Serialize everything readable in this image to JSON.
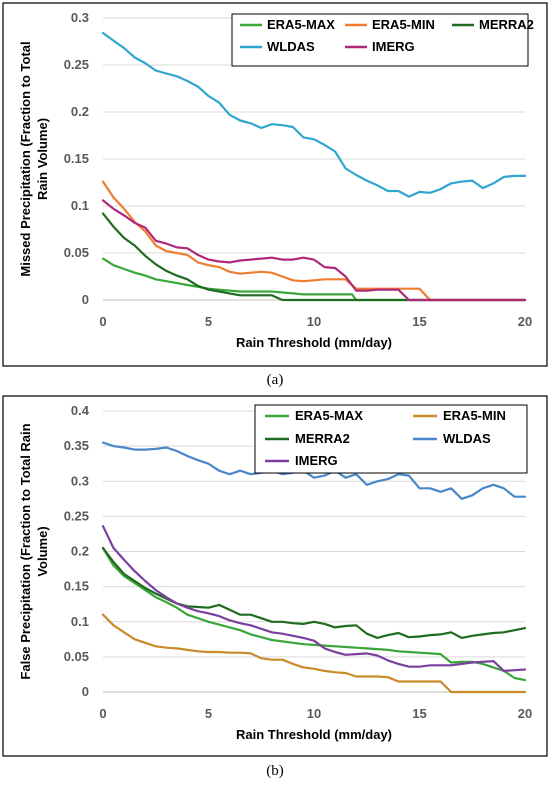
{
  "chart_data": [
    {
      "type": "line",
      "panel_label": "(a)",
      "title": "",
      "xlabel": "Rain Threshold (mm/day)",
      "ylabel": "Missed Precipitation (Fraction to Total Rain Volume)",
      "xlim": [
        0,
        20
      ],
      "ylim": [
        0,
        0.3
      ],
      "xticks": [
        "0",
        "5",
        "10",
        "15",
        "20"
      ],
      "yticks": [
        "0",
        "0.05",
        "0.1",
        "0.15",
        "0.2",
        "0.25",
        "0.3"
      ],
      "grid": "horizontal",
      "legend_position": "top-right",
      "series": [
        {
          "name": "ERA5-MAX",
          "color": "#3aa63a",
          "x": [
            0,
            0.5,
            1,
            1.5,
            2,
            2.5,
            3,
            3.5,
            4,
            4.5,
            5,
            5.5,
            6,
            6.5,
            7,
            7.5,
            8,
            8.5,
            9,
            9.5,
            10,
            10.5,
            11,
            11.5,
            11.8,
            12,
            12.5,
            13,
            14,
            15,
            16,
            17,
            18,
            19,
            20
          ],
          "y": [
            0.044,
            0.037,
            0.033,
            0.029,
            0.026,
            0.022,
            0.02,
            0.018,
            0.016,
            0.014,
            0.012,
            0.011,
            0.01,
            0.009,
            0.009,
            0.009,
            0.009,
            0.008,
            0.007,
            0.006,
            0.006,
            0.006,
            0.006,
            0.006,
            0.006,
            0,
            0,
            0,
            0,
            0,
            0,
            0,
            0,
            0,
            0
          ]
        },
        {
          "name": "ERA5-MIN",
          "color": "#f07c30",
          "x": [
            0,
            0.5,
            1,
            1.5,
            2,
            2.5,
            3,
            3.5,
            4,
            4.5,
            5,
            5.5,
            6,
            6.5,
            7,
            7.5,
            8,
            8.5,
            9,
            9.5,
            10,
            10.5,
            11,
            11.5,
            12,
            12.5,
            13,
            13.5,
            14,
            14.5,
            15,
            15.5,
            16,
            17,
            18,
            19,
            20
          ],
          "y": [
            0.126,
            0.109,
            0.097,
            0.083,
            0.073,
            0.058,
            0.052,
            0.05,
            0.048,
            0.04,
            0.037,
            0.035,
            0.03,
            0.028,
            0.029,
            0.03,
            0.029,
            0.025,
            0.021,
            0.02,
            0.021,
            0.022,
            0.022,
            0.022,
            0.012,
            0.012,
            0.012,
            0.012,
            0.012,
            0.012,
            0.012,
            0,
            0,
            0,
            0,
            0,
            0
          ]
        },
        {
          "name": "MERRA2",
          "color": "#1f6b1f",
          "x": [
            0,
            0.5,
            1,
            1.5,
            2,
            2.5,
            3,
            3.5,
            4,
            4.5,
            5,
            5.5,
            6,
            6.5,
            7,
            7.5,
            8,
            8.5,
            9,
            10,
            11,
            12,
            13,
            14,
            15,
            16,
            17,
            18,
            19,
            20
          ],
          "y": [
            0.092,
            0.078,
            0.066,
            0.058,
            0.047,
            0.038,
            0.031,
            0.026,
            0.022,
            0.015,
            0.011,
            0.009,
            0.007,
            0.005,
            0.005,
            0.005,
            0.005,
            0,
            0,
            0,
            0,
            0,
            0,
            0,
            0,
            0,
            0,
            0,
            0,
            0
          ]
        },
        {
          "name": "WLDAS",
          "color": "#2fa6cf",
          "x": [
            0,
            0.5,
            1,
            1.5,
            2,
            2.5,
            3,
            3.5,
            4,
            4.5,
            5,
            5.5,
            6,
            6.5,
            7,
            7.5,
            8,
            8.5,
            9,
            9.5,
            10,
            10.5,
            11,
            11.5,
            12,
            12.5,
            13,
            13.5,
            14,
            14.5,
            15,
            15.5,
            16,
            16.5,
            17,
            17.5,
            18,
            18.5,
            19,
            19.5,
            20
          ],
          "y": [
            0.284,
            0.276,
            0.268,
            0.258,
            0.252,
            0.244,
            0.241,
            0.238,
            0.233,
            0.227,
            0.217,
            0.21,
            0.197,
            0.191,
            0.188,
            0.183,
            0.187,
            0.186,
            0.184,
            0.173,
            0.171,
            0.165,
            0.158,
            0.14,
            0.133,
            0.127,
            0.122,
            0.116,
            0.116,
            0.11,
            0.115,
            0.114,
            0.118,
            0.124,
            0.126,
            0.127,
            0.119,
            0.124,
            0.131,
            0.132,
            0.132
          ]
        },
        {
          "name": "IMERG",
          "color": "#b0287a",
          "x": [
            0,
            0.5,
            1,
            1.5,
            2,
            2.5,
            3,
            3.5,
            4,
            4.5,
            5,
            5.5,
            6,
            6.5,
            7,
            7.5,
            8,
            8.5,
            9,
            9.5,
            10,
            10.5,
            11,
            11.5,
            12,
            12.5,
            13,
            13.5,
            14,
            14.5,
            15,
            16,
            17,
            18,
            19,
            20
          ],
          "y": [
            0.106,
            0.097,
            0.09,
            0.082,
            0.077,
            0.063,
            0.06,
            0.056,
            0.055,
            0.048,
            0.043,
            0.041,
            0.04,
            0.042,
            0.043,
            0.044,
            0.045,
            0.043,
            0.043,
            0.045,
            0.043,
            0.035,
            0.034,
            0.025,
            0.01,
            0.01,
            0.011,
            0.011,
            0.011,
            0,
            0,
            0,
            0,
            0,
            0,
            0
          ]
        }
      ]
    },
    {
      "type": "line",
      "panel_label": "(b)",
      "title": "",
      "xlabel": "Rain Threshold (mm/day)",
      "ylabel": "False Precipitation (Fraction to Total Rain Volume)",
      "xlim": [
        0,
        20
      ],
      "ylim": [
        0,
        0.4
      ],
      "xticks": [
        "0",
        "5",
        "10",
        "15",
        "20"
      ],
      "yticks": [
        "0",
        "0.05",
        "0.1",
        "0.15",
        "0.2",
        "0.25",
        "0.3",
        "0.35",
        "0.4"
      ],
      "grid": "horizontal",
      "legend_position": "top-right",
      "series": [
        {
          "name": "ERA5-MAX",
          "color": "#3aa63a",
          "x": [
            0,
            0.5,
            1,
            1.5,
            2,
            2.5,
            3,
            3.5,
            4,
            4.5,
            5,
            5.5,
            6,
            6.5,
            7,
            7.5,
            8,
            8.5,
            9,
            9.5,
            10,
            10.5,
            11,
            11.5,
            12,
            12.5,
            13,
            13.5,
            14,
            14.5,
            15,
            15.5,
            16,
            16.5,
            17,
            17.5,
            18,
            18.5,
            19,
            19.5,
            20
          ],
          "y": [
            0.205,
            0.18,
            0.165,
            0.155,
            0.145,
            0.135,
            0.128,
            0.12,
            0.11,
            0.105,
            0.1,
            0.096,
            0.092,
            0.088,
            0.082,
            0.078,
            0.074,
            0.072,
            0.07,
            0.068,
            0.067,
            0.066,
            0.065,
            0.064,
            0.063,
            0.062,
            0.061,
            0.06,
            0.058,
            0.057,
            0.056,
            0.055,
            0.054,
            0.042,
            0.043,
            0.043,
            0.04,
            0.035,
            0.03,
            0.02,
            0.017
          ]
        },
        {
          "name": "ERA5-MIN",
          "color": "#c98a2a",
          "x": [
            0,
            0.5,
            1,
            1.5,
            2,
            2.5,
            3,
            3.5,
            4,
            4.5,
            5,
            5.5,
            6,
            6.5,
            7,
            7.5,
            8,
            8.5,
            9,
            9.5,
            10,
            10.5,
            11,
            11.5,
            12,
            12.5,
            13,
            13.5,
            14,
            14.5,
            15,
            15.5,
            16,
            16.5,
            17,
            18,
            19,
            20
          ],
          "y": [
            0.11,
            0.095,
            0.085,
            0.075,
            0.07,
            0.065,
            0.063,
            0.062,
            0.06,
            0.058,
            0.057,
            0.057,
            0.056,
            0.056,
            0.055,
            0.048,
            0.046,
            0.046,
            0.04,
            0.035,
            0.033,
            0.03,
            0.028,
            0.027,
            0.022,
            0.022,
            0.022,
            0.021,
            0.015,
            0.015,
            0.015,
            0.015,
            0.015,
            0,
            0,
            0,
            0,
            0
          ]
        },
        {
          "name": "MERRA2",
          "color": "#1f6b1f",
          "x": [
            0,
            0.5,
            1,
            1.5,
            2,
            2.5,
            3,
            3.5,
            4,
            4.5,
            5,
            5.5,
            6,
            6.5,
            7,
            7.5,
            8,
            8.5,
            9,
            9.5,
            10,
            10.5,
            11,
            11.5,
            12,
            12.5,
            13,
            13.5,
            14,
            14.5,
            15,
            15.5,
            16,
            16.5,
            17,
            17.5,
            18,
            18.5,
            19,
            19.5,
            20
          ],
          "y": [
            0.205,
            0.185,
            0.168,
            0.158,
            0.148,
            0.14,
            0.133,
            0.126,
            0.122,
            0.121,
            0.12,
            0.124,
            0.117,
            0.11,
            0.11,
            0.105,
            0.1,
            0.1,
            0.098,
            0.097,
            0.1,
            0.097,
            0.092,
            0.094,
            0.095,
            0.083,
            0.077,
            0.081,
            0.084,
            0.078,
            0.079,
            0.081,
            0.082,
            0.085,
            0.077,
            0.08,
            0.082,
            0.084,
            0.085,
            0.088,
            0.091
          ]
        },
        {
          "name": "WLDAS",
          "color": "#4a86c8",
          "x": [
            0,
            0.5,
            1,
            1.5,
            2,
            2.5,
            3,
            3.5,
            4,
            4.5,
            5,
            5.5,
            6,
            6.5,
            7,
            7.5,
            8,
            8.5,
            9,
            9.5,
            10,
            10.5,
            11,
            11.5,
            12,
            12.5,
            13,
            13.5,
            14,
            14.5,
            15,
            15.5,
            16,
            16.5,
            17,
            17.5,
            18,
            18.5,
            19,
            19.5,
            20
          ],
          "y": [
            0.355,
            0.35,
            0.348,
            0.345,
            0.345,
            0.346,
            0.348,
            0.343,
            0.336,
            0.33,
            0.325,
            0.315,
            0.31,
            0.315,
            0.31,
            0.312,
            0.315,
            0.31,
            0.312,
            0.315,
            0.305,
            0.308,
            0.315,
            0.305,
            0.31,
            0.295,
            0.3,
            0.303,
            0.31,
            0.308,
            0.29,
            0.29,
            0.285,
            0.29,
            0.275,
            0.28,
            0.29,
            0.295,
            0.29,
            0.278,
            0.278
          ]
        },
        {
          "name": "IMERG",
          "color": "#7b3fa0",
          "x": [
            0,
            0.5,
            1,
            1.5,
            2,
            2.5,
            3,
            3.5,
            4,
            4.5,
            5,
            5.5,
            6,
            6.5,
            7,
            7.5,
            8,
            8.5,
            9,
            9.5,
            10,
            10.5,
            11,
            11.5,
            12,
            12.5,
            13,
            13.5,
            14,
            14.5,
            15,
            15.5,
            16,
            16.5,
            17,
            17.5,
            18,
            18.5,
            19,
            19.5,
            20
          ],
          "y": [
            0.236,
            0.205,
            0.188,
            0.172,
            0.158,
            0.145,
            0.135,
            0.126,
            0.12,
            0.115,
            0.112,
            0.108,
            0.102,
            0.098,
            0.095,
            0.09,
            0.085,
            0.083,
            0.08,
            0.077,
            0.073,
            0.062,
            0.057,
            0.053,
            0.054,
            0.055,
            0.052,
            0.045,
            0.04,
            0.036,
            0.036,
            0.038,
            0.038,
            0.038,
            0.04,
            0.042,
            0.043,
            0.044,
            0.03,
            0.031,
            0.032
          ]
        }
      ]
    }
  ]
}
